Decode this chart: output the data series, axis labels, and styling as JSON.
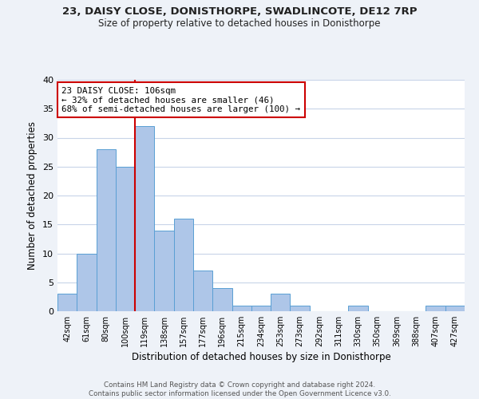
{
  "title1": "23, DAISY CLOSE, DONISTHORPE, SWADLINCOTE, DE12 7RP",
  "title2": "Size of property relative to detached houses in Donisthorpe",
  "xlabel": "Distribution of detached houses by size in Donisthorpe",
  "ylabel": "Number of detached properties",
  "bin_labels": [
    "42sqm",
    "61sqm",
    "80sqm",
    "100sqm",
    "119sqm",
    "138sqm",
    "157sqm",
    "177sqm",
    "196sqm",
    "215sqm",
    "234sqm",
    "253sqm",
    "273sqm",
    "292sqm",
    "311sqm",
    "330sqm",
    "350sqm",
    "369sqm",
    "388sqm",
    "407sqm",
    "427sqm"
  ],
  "bar_values": [
    3,
    10,
    28,
    25,
    32,
    14,
    16,
    7,
    4,
    1,
    1,
    3,
    1,
    0,
    0,
    1,
    0,
    0,
    0,
    1,
    1
  ],
  "bar_color": "#aec6e8",
  "bar_edge_color": "#5a9fd4",
  "vline_x": 3.5,
  "vline_color": "#cc0000",
  "annotation_text": "23 DAISY CLOSE: 106sqm\n← 32% of detached houses are smaller (46)\n68% of semi-detached houses are larger (100) →",
  "annotation_box_color": "#ffffff",
  "annotation_box_edge": "#cc0000",
  "ylim": [
    0,
    40
  ],
  "yticks": [
    0,
    5,
    10,
    15,
    20,
    25,
    30,
    35,
    40
  ],
  "footnote": "Contains HM Land Registry data © Crown copyright and database right 2024.\nContains public sector information licensed under the Open Government Licence v3.0.",
  "background_color": "#eef2f8",
  "plot_bg_color": "#ffffff",
  "grid_color": "#c8d4e8"
}
